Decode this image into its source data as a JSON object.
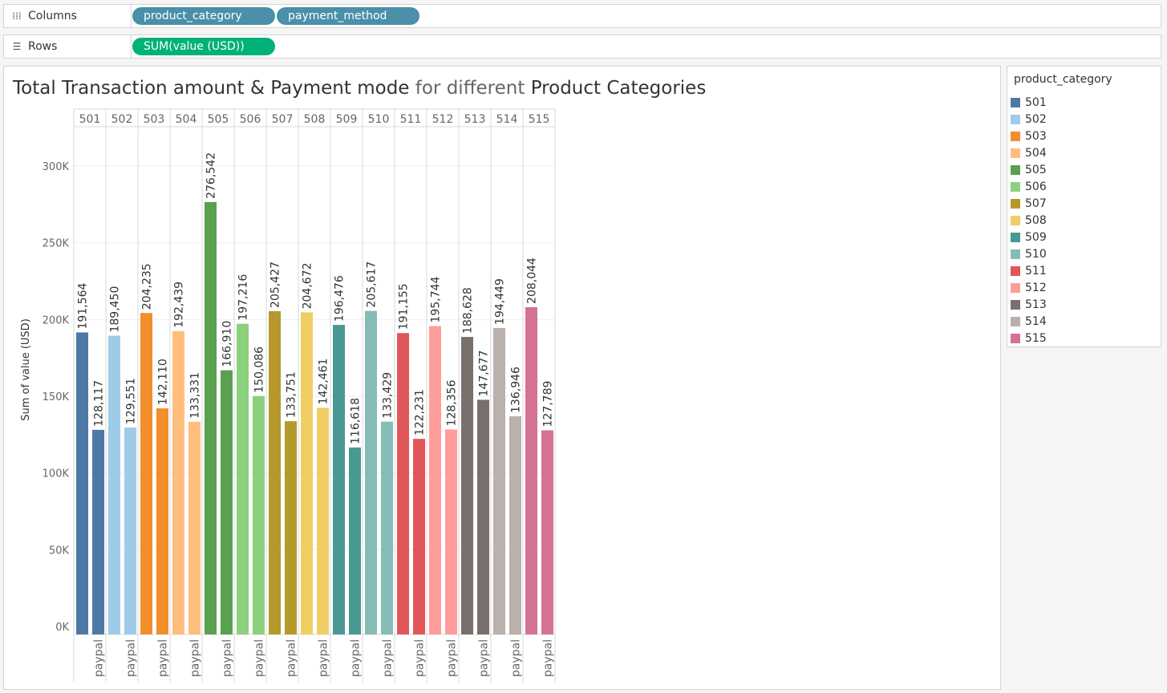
{
  "shelves": {
    "columns": {
      "label": "Columns",
      "icon": "columns-icon",
      "pills": [
        "product_category",
        "payment_method"
      ]
    },
    "rows": {
      "label": "Rows",
      "icon": "rows-icon",
      "pills": [
        "SUM(value (USD))"
      ]
    }
  },
  "title": {
    "part1": "Total Transaction amount & Payment mode",
    "part2": " for different ",
    "part3": "Product Categories"
  },
  "legend": {
    "title": "product_category",
    "items": [
      {
        "label": "501",
        "color": "#4e79a7"
      },
      {
        "label": "502",
        "color": "#a0cbe8"
      },
      {
        "label": "503",
        "color": "#f28e2b"
      },
      {
        "label": "504",
        "color": "#ffbe7d"
      },
      {
        "label": "505",
        "color": "#59a14f"
      },
      {
        "label": "506",
        "color": "#8cd17d"
      },
      {
        "label": "507",
        "color": "#b6992d"
      },
      {
        "label": "508",
        "color": "#f1ce63"
      },
      {
        "label": "509",
        "color": "#499894"
      },
      {
        "label": "510",
        "color": "#86bcb6"
      },
      {
        "label": "511",
        "color": "#e15759"
      },
      {
        "label": "512",
        "color": "#ff9d9a"
      },
      {
        "label": "513",
        "color": "#79706e"
      },
      {
        "label": "514",
        "color": "#bab0ac"
      },
      {
        "label": "515",
        "color": "#d37295"
      }
    ]
  },
  "chart_data": {
    "type": "bar",
    "ylabel": "Sum of value (USD)",
    "ylim": [
      0,
      330000
    ],
    "yticks": [
      0,
      50000,
      100000,
      150000,
      200000,
      250000,
      300000
    ],
    "ytick_labels": [
      "0K",
      "50K",
      "100K",
      "150K",
      "200K",
      "250K",
      "300K"
    ],
    "grid": true,
    "categories": [
      "501",
      "502",
      "503",
      "504",
      "505",
      "506",
      "507",
      "508",
      "509",
      "510",
      "511",
      "512",
      "513",
      "514",
      "515"
    ],
    "sub_categories": [
      "",
      "paypal"
    ],
    "series": [
      {
        "values": [
          191564,
          189450,
          204235,
          192439,
          276542,
          197216,
          205427,
          204672,
          196476,
          205617,
          191155,
          195744,
          188628,
          194449,
          208044
        ],
        "labels": [
          "191,564",
          "189,450",
          "204,235",
          "192,439",
          "276,542",
          "197,216",
          "205,427",
          "204,672",
          "196,476",
          "205,617",
          "191,155",
          "195,744",
          "188,628",
          "194,449",
          "208,044"
        ]
      },
      {
        "name": "paypal",
        "values": [
          128117,
          129551,
          142110,
          133331,
          166910,
          150086,
          133751,
          142461,
          116618,
          133429,
          122231,
          128356,
          147677,
          136946,
          127789
        ],
        "labels": [
          "128,117",
          "129,551",
          "142,110",
          "133,331",
          "166,910",
          "150,086",
          "133,751",
          "142,461",
          "116,618",
          "133,429",
          "122,231",
          "128,356",
          "147,677",
          "136,946",
          "127,789"
        ]
      }
    ]
  }
}
